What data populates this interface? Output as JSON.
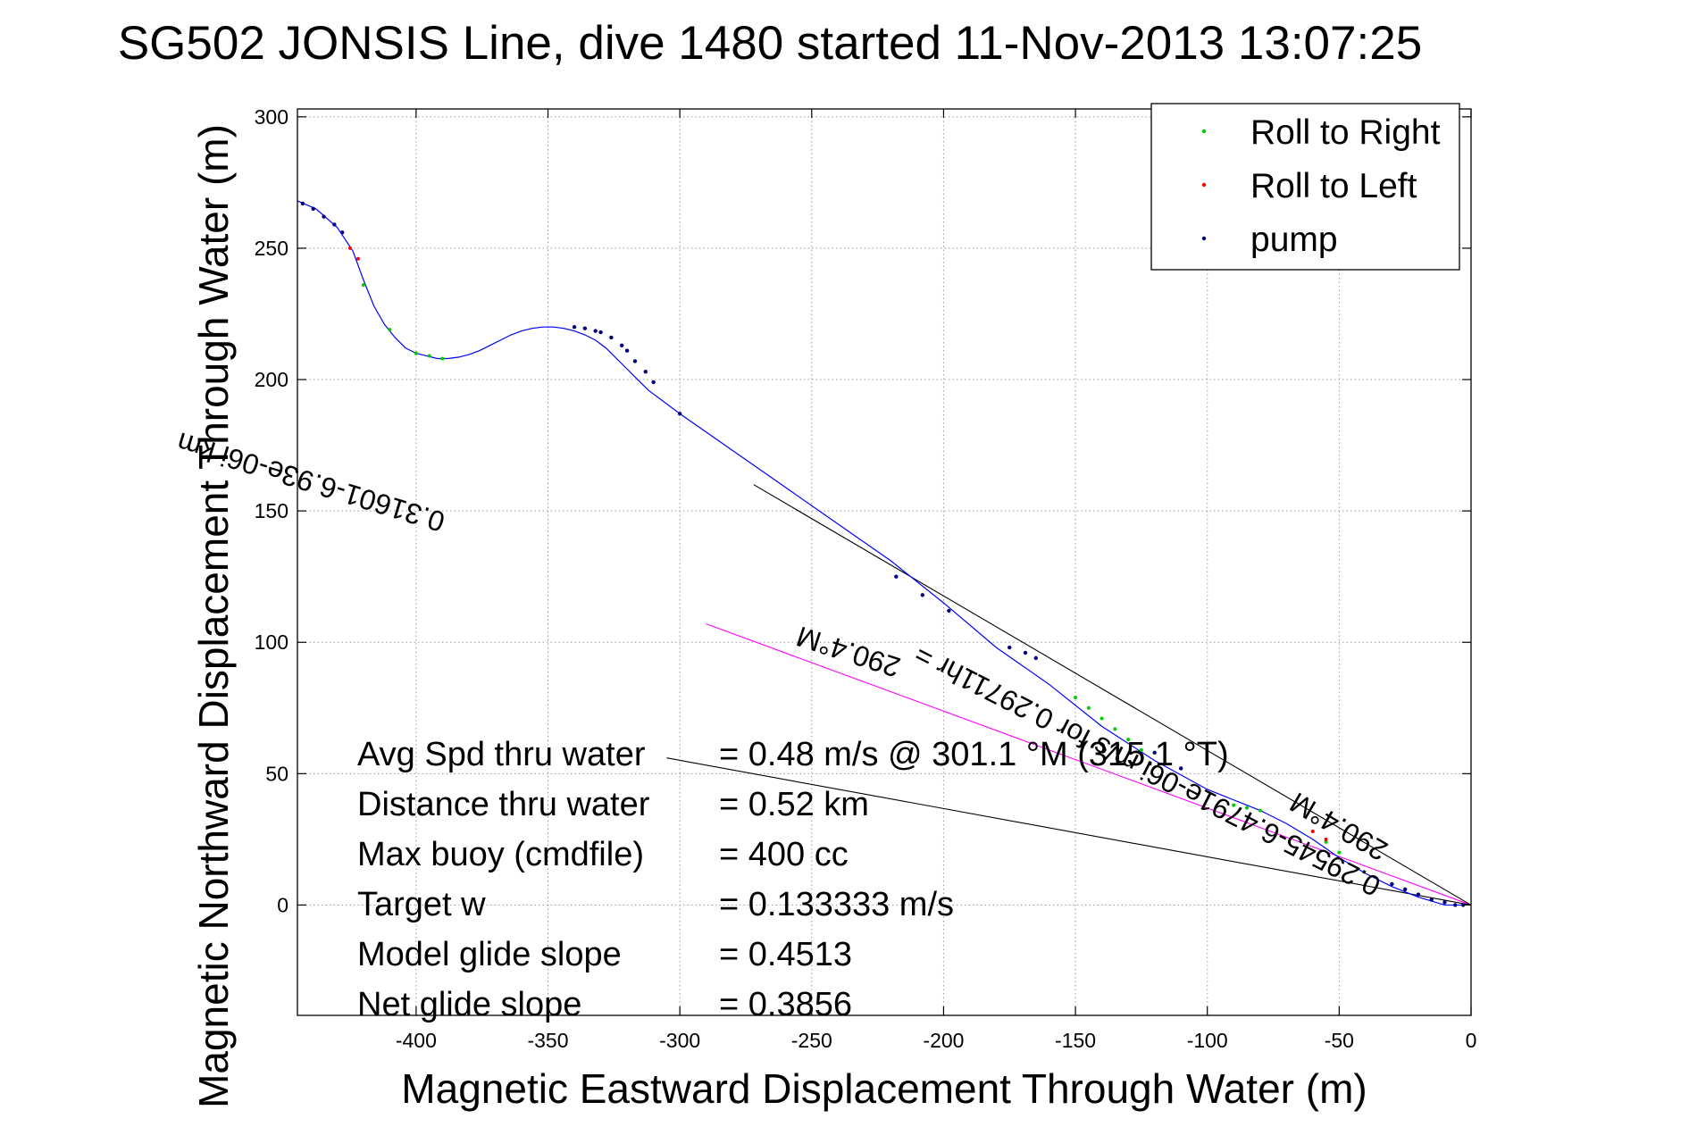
{
  "chart_data": {
    "type": "line",
    "title": "SG502 JONSIS Line, dive 1480 started 11-Nov-2013 13:07:25",
    "xlabel": "Magnetic Eastward Displacement Through Water (m)",
    "ylabel": "Magnetic Northward Displacement Through Water (m)",
    "xlim": [
      -445,
      0
    ],
    "ylim": [
      -42,
      303
    ],
    "x_ticks": [
      -400,
      -350,
      -300,
      -250,
      -200,
      -150,
      -100,
      -50,
      0
    ],
    "y_ticks": [
      0,
      50,
      100,
      150,
      200,
      250,
      300
    ],
    "x_tick_labels": [
      "-400",
      "-350",
      "-300",
      "-250",
      "-200",
      "-150",
      "-100",
      "-50",
      "0"
    ],
    "y_tick_labels": [
      "0",
      "50",
      "100",
      "150",
      "200",
      "250",
      "300"
    ],
    "grid": true,
    "legend_position": "top-right",
    "legend": [
      {
        "label": "Roll to Right",
        "color": "#00cc00"
      },
      {
        "label": "Roll to Left",
        "color": "#ff0000"
      },
      {
        "label": "pump",
        "color": "#000080"
      }
    ],
    "track": {
      "name": "track",
      "color": "#0000ff",
      "x": [
        -445,
        -438,
        -430,
        -424,
        -420,
        -416,
        -412,
        -408,
        -404,
        -400,
        -396,
        -392,
        -388,
        -384,
        -380,
        -376,
        -372,
        -368,
        -364,
        -360,
        -356,
        -352,
        -348,
        -344,
        -340,
        -336,
        -332,
        -328,
        -324,
        -320,
        -316,
        -312,
        -300,
        -280,
        -260,
        -240,
        -220,
        -200,
        -180,
        -160,
        -140,
        -120,
        -100,
        -90,
        -80,
        -70,
        -60,
        -50,
        -40,
        -30,
        -20,
        -10,
        -5,
        0
      ],
      "y": [
        268,
        265,
        258,
        249,
        238,
        228,
        221,
        216,
        212,
        210,
        209,
        208,
        208,
        208.5,
        209.5,
        211,
        213,
        215,
        217,
        218.5,
        219.5,
        220,
        220,
        219.5,
        218.5,
        217,
        215,
        212,
        208,
        204,
        200,
        196,
        187,
        173,
        159,
        145,
        131,
        115,
        98,
        84,
        68,
        55,
        44,
        40,
        36,
        31,
        25,
        18,
        12,
        7,
        3,
        0,
        0,
        0
      ]
    },
    "pump_points": {
      "x": [
        -443,
        -439,
        -435,
        -431,
        -428,
        -340,
        -336,
        -332,
        -330,
        -326,
        -322,
        -320,
        -317,
        -313,
        -310,
        -300,
        -218,
        -208,
        -198,
        -175,
        -169,
        -165,
        -120,
        -110,
        -30,
        -25,
        -20,
        -15,
        -10,
        -6,
        -3
      ],
      "y": [
        267,
        265,
        262,
        259,
        256,
        220,
        219.5,
        218.5,
        218,
        216,
        213,
        211,
        207,
        203,
        199,
        187,
        125,
        118,
        112,
        98,
        96,
        94,
        58,
        52,
        8,
        6,
        4,
        2,
        1,
        0,
        0
      ]
    },
    "roll_right_points": {
      "x": [
        -420,
        -410,
        -400,
        -395,
        -390,
        -150,
        -145,
        -140,
        -135,
        -130,
        -125,
        -90,
        -85,
        -80,
        -55,
        -50
      ],
      "y": [
        236,
        219,
        210,
        209,
        208,
        79,
        75,
        71,
        67,
        63,
        59,
        38,
        37,
        36,
        24,
        20
      ]
    },
    "roll_left_points": {
      "x": [
        -425,
        -422,
        -60,
        -55
      ],
      "y": [
        250,
        246,
        28,
        25
      ]
    },
    "reference_lines": [
      {
        "name": "current-vector",
        "color": "#ff00ff",
        "x": [
          -290,
          0
        ],
        "y": [
          107,
          0
        ]
      },
      {
        "name": "heading-line-upper",
        "color": "#000000",
        "x": [
          -272,
          0
        ],
        "y": [
          160,
          0
        ]
      },
      {
        "name": "heading-line-lower",
        "color": "#000000",
        "x": [
          -305,
          0
        ],
        "y": [
          56,
          0
        ]
      }
    ]
  },
  "annotations": {
    "current_text": "0.31601-6.93e-06i km",
    "current_heading": "290.4°M",
    "rate_text": "0.29545-6.4791e-06i m/s for 0.29711hr =",
    "rate_heading": "290.4°M"
  },
  "stats": [
    {
      "label": "Avg Spd thru water",
      "value": "=  0.48 m/s @ 301.1 °M (315.1 °T)"
    },
    {
      "label": "Distance thru water",
      "value": "=  0.52 km"
    },
    {
      "label": "Max buoy (cmdfile)",
      "value": "= 400 cc"
    },
    {
      "label": "Target w",
      "value": "= 0.133333 m/s"
    },
    {
      "label": "Model glide slope",
      "value": "= 0.4513"
    },
    {
      "label": "Net glide slope",
      "value": "= 0.3856"
    }
  ]
}
